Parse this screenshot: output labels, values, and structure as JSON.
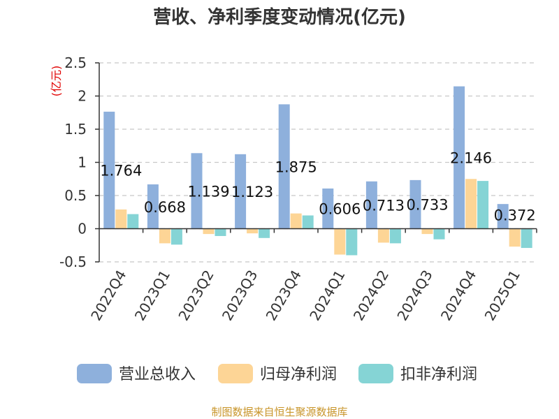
{
  "chart_data": {
    "type": "bar",
    "title": "营收、净利季度变动情况(亿元)",
    "ylabel": "(亿元)",
    "ylim": [
      -0.5,
      2.5
    ],
    "yticks": [
      -0.5,
      0,
      0.5,
      1,
      1.5,
      2,
      2.5
    ],
    "ytick_labels": [
      "-0.5",
      "0",
      "0.5",
      "1",
      "1.5",
      "2",
      "2.5"
    ],
    "categories": [
      "2022Q4",
      "2023Q1",
      "2023Q2",
      "2023Q3",
      "2023Q4",
      "2024Q1",
      "2024Q2",
      "2024Q3",
      "2024Q4",
      "2025Q1"
    ],
    "series": [
      {
        "name": "营业总收入",
        "color": "#8eb0dc",
        "values": [
          1.764,
          0.668,
          1.139,
          1.123,
          1.875,
          0.606,
          0.713,
          0.733,
          2.146,
          0.372
        ]
      },
      {
        "name": "归母净利润",
        "color": "#fdd596",
        "values": [
          0.29,
          -0.22,
          -0.08,
          -0.07,
          0.23,
          -0.39,
          -0.21,
          -0.08,
          0.75,
          -0.27
        ]
      },
      {
        "name": "扣非净利润",
        "color": "#85d4d5",
        "values": [
          0.22,
          -0.24,
          -0.11,
          -0.14,
          0.2,
          -0.4,
          -0.22,
          -0.16,
          0.72,
          -0.29
        ]
      }
    ],
    "data_labels": [
      "1.764",
      "0.668",
      "1.139",
      "1.123",
      "1.875",
      "0.606",
      "0.713",
      "0.733",
      "2.146",
      "0.372"
    ],
    "legend_position": "bottom"
  },
  "source": "制图数据来自恒生聚源数据库"
}
